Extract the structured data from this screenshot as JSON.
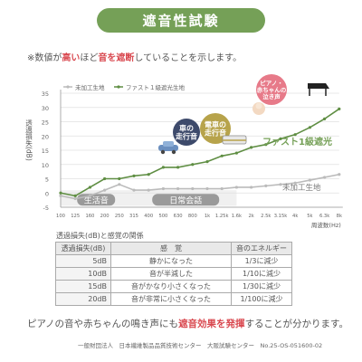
{
  "title": "遮音性試験",
  "note": {
    "p1": "※数値が",
    "h1": "高い",
    "p2": "ほど",
    "h2": "音を遮断",
    "p3": "していることを示します。"
  },
  "chart_data": {
    "type": "line",
    "x": [
      "100",
      "125",
      "160",
      "200",
      "250",
      "315",
      "400",
      "500",
      "630",
      "800",
      "1k",
      "1.25k",
      "1.6k",
      "2k",
      "2.5k",
      "3.15k",
      "4k",
      "5k",
      "6.3k",
      "8k"
    ],
    "xlabel": "周波数(Hz)",
    "ylabel": "透過損失(dB)",
    "ylim": [
      -5,
      35
    ],
    "yticks": [
      -5,
      0,
      5,
      10,
      15,
      20,
      25,
      30,
      35
    ],
    "grid": true,
    "legend_position": "top-left",
    "series": [
      {
        "name": "未加工生地",
        "color": "#bbbbbb",
        "values": [
          -1,
          -2,
          -1,
          1,
          3,
          1,
          1,
          1.5,
          1.5,
          1.5,
          1.5,
          1.5,
          2,
          2,
          2.5,
          3,
          3.5,
          4.5,
          5.5,
          6.5
        ]
      },
      {
        "name": "ファスト１級遮光生地",
        "color": "#5f8e43",
        "values": [
          0,
          -1,
          2,
          5,
          5,
          6,
          6.5,
          9,
          9,
          10,
          11,
          13,
          14,
          16,
          17,
          19,
          20.5,
          23,
          26,
          29.5
        ]
      }
    ],
    "series_labels": {
      "fast": "ファスト1級遮光",
      "raw": "未加工生地"
    },
    "bands": {
      "low": "生活音",
      "mid": "日常会話"
    },
    "bubbles": {
      "car": "車の走行音",
      "train": "電車の走行音",
      "baby": "ピアノ・赤ちゃんの泣き声"
    }
  },
  "table": {
    "title": "透過損失(dB)と感覚の関係",
    "headers": [
      "透過損失(dB)",
      "感　覚",
      "音のエネルギー"
    ],
    "rows": [
      [
        "5dB",
        "静かになった",
        "1/3に減少"
      ],
      [
        "10dB",
        "音が半減した",
        "1/10に減少"
      ],
      [
        "15dB",
        "音がかなり小さくなった",
        "1/30に減少"
      ],
      [
        "20dB",
        "音が非常に小さくなった",
        "1/100に減少"
      ]
    ]
  },
  "summary": {
    "p1": "ピアノの音や赤ちゃんの鳴き声にも",
    "h1": "遮音効果を発揮",
    "p2": "することが分かります。"
  },
  "footer": "一般財団法人　日本繊維製品品質技術センター　大阪試験センター　No.25-OS-051600-02",
  "colors": {
    "brand_green": "#75a057",
    "highlight_red": "#d9484f",
    "bubble_navy": "#3d4a6b",
    "bubble_olive": "#b7a34b",
    "bubble_pink": "#e77a89"
  }
}
